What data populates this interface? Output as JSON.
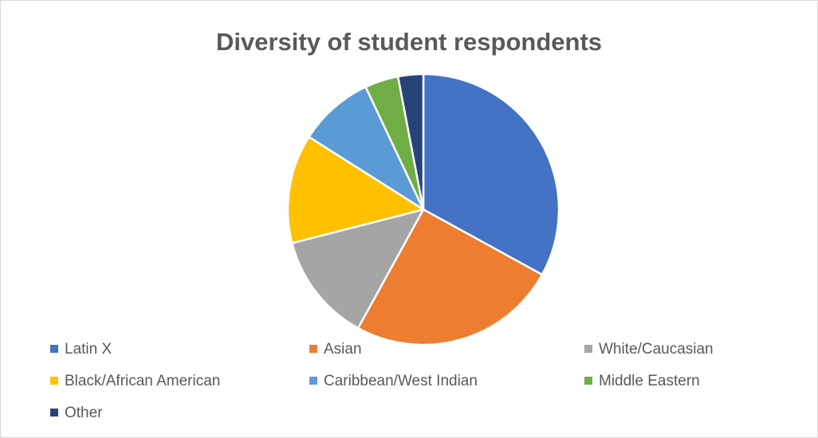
{
  "chart_data": {
    "type": "pie",
    "title": "Diversity of student respondents",
    "categories": [
      "Latin X",
      "Asian",
      "White/Caucasian",
      "Black/African American",
      "Caribbean/West Indian",
      "Middle Eastern",
      "Other"
    ],
    "values": [
      33,
      25,
      13,
      13,
      9,
      4,
      3
    ],
    "colors": [
      "#4472C4",
      "#ED7D31",
      "#A5A5A5",
      "#FFC000",
      "#5B9BD5",
      "#70AD47",
      "#264478"
    ],
    "legend_position": "bottom"
  }
}
